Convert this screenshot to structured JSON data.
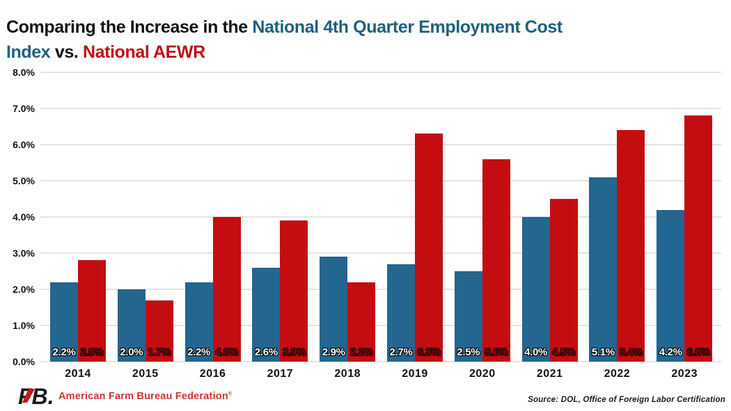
{
  "title": {
    "line1": [
      {
        "text": "Comparing the Increase in the ",
        "color": "#121212"
      },
      {
        "text": "National 4th Quarter Employment Cost",
        "color": "#20607F"
      }
    ],
    "line2": [
      {
        "text": "Index",
        "color": "#20607F"
      },
      {
        "text": " vs. ",
        "color": "#121212"
      },
      {
        "text": "National AEWR",
        "color": "#C00D12"
      }
    ]
  },
  "chart_data": {
    "type": "bar",
    "categories": [
      "2014",
      "2015",
      "2016",
      "2017",
      "2018",
      "2019",
      "2020",
      "2021",
      "2022",
      "2023"
    ],
    "series": [
      {
        "key": "eci",
        "name": "National 4th Quarter Employment Cost Index",
        "color": "#23668F",
        "values": [
          2.2,
          2.0,
          2.2,
          2.6,
          2.9,
          2.7,
          2.5,
          4.0,
          5.1,
          4.2
        ],
        "labels": [
          "2.2%",
          "2.0%",
          "2.2%",
          "2.6%",
          "2.9%",
          "2.7%",
          "2.5%",
          "4.0%",
          "5.1%",
          "4.2%"
        ]
      },
      {
        "key": "aewr",
        "name": "National AEWR",
        "color": "#C40D11",
        "values": [
          2.8,
          1.7,
          4.0,
          3.9,
          2.2,
          6.3,
          5.6,
          4.5,
          6.4,
          6.8
        ],
        "labels": [
          "2.8%",
          "1.7%",
          "4.0%",
          "3.9%",
          "2.2%",
          "6.3%",
          "5.6%",
          "4.5%",
          "6.4%",
          "6.8%"
        ]
      }
    ],
    "xlabel": "",
    "ylabel": "",
    "ylim": [
      0,
      8
    ],
    "ytick_step": 1,
    "yticks": [
      "0.0%",
      "1.0%",
      "2.0%",
      "3.0%",
      "4.0%",
      "5.0%",
      "6.0%",
      "7.0%",
      "8.0%"
    ],
    "grid": true,
    "legend_position": "none",
    "value_labels_position": "inside-bottom"
  },
  "footer": {
    "logo_text": "FB.",
    "org": "American Farm Bureau Federation",
    "trademark": "®",
    "source": "Source: DOL, Office of Foreign Labor Certification"
  },
  "colors": {
    "bar_blue": "#23668F",
    "bar_red": "#C40D11",
    "title_teal": "#20607F",
    "title_red": "#C00D12",
    "title_dark": "#121212",
    "gridline": "#E3E3E3",
    "org_red": "#CE352C",
    "label_on_red": "#7E0E12",
    "label_on_blue": "#FFFFFF"
  }
}
